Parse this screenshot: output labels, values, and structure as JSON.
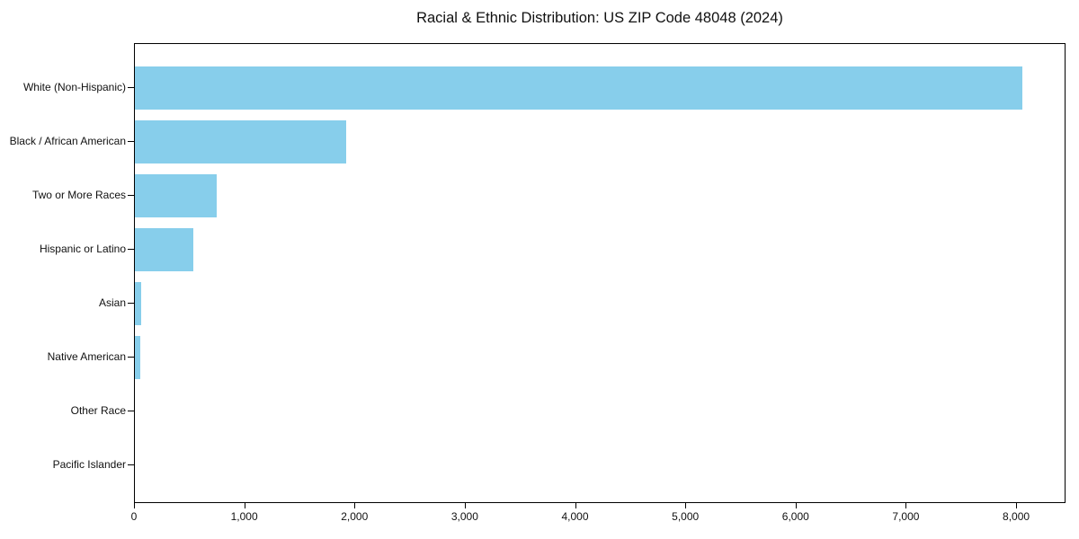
{
  "chart_data": {
    "type": "bar",
    "orientation": "horizontal",
    "title": "Racial & Ethnic Distribution: US ZIP Code 48048 (2024)",
    "categories": [
      "White (Non-Hispanic)",
      "Black / African American",
      "Two or More Races",
      "Hispanic or Latino",
      "Asian",
      "Native American",
      "Other Race",
      "Pacific Islander"
    ],
    "values": [
      8050,
      1920,
      740,
      530,
      60,
      50,
      0,
      0
    ],
    "xlabel": "",
    "ylabel": "",
    "xlim": [
      0,
      8448
    ],
    "xticks": [
      0,
      1000,
      2000,
      3000,
      4000,
      5000,
      6000,
      7000,
      8000
    ],
    "xtick_labels": [
      "0",
      "1,000",
      "2,000",
      "3,000",
      "4,000",
      "5,000",
      "6,000",
      "7,000",
      "8,000"
    ],
    "bar_color": "#87CEEB",
    "spine_color": "#000000",
    "text_color": "#111111",
    "grid": false,
    "legend": null
  }
}
